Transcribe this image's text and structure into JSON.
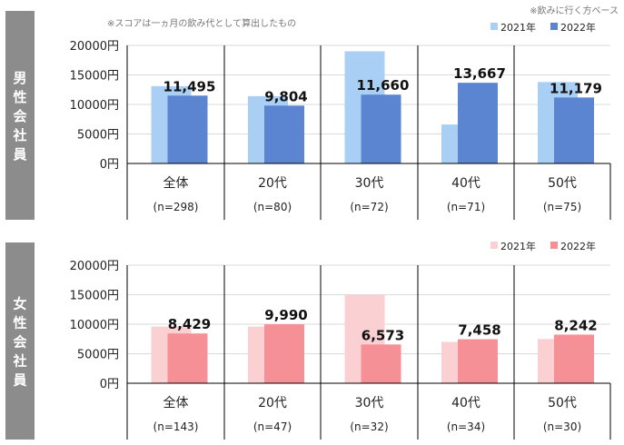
{
  "notes": {
    "score_note": "※スコアは一ヵ月の飲み代として算出したもの",
    "base_note": "※飲みに行く方ベース"
  },
  "colors": {
    "male_2021": "#a9cff5",
    "male_2022": "#5b84d1",
    "female_2021": "#fbd0d2",
    "female_2022": "#f59096",
    "side_label_bg": "#8c8c8c",
    "grid": "#d9d9d9",
    "axis": "#000000"
  },
  "chart_data": [
    {
      "type": "bar",
      "side_label": "男性会社員",
      "categories": [
        "全体",
        "20代",
        "30代",
        "40代",
        "50代"
      ],
      "sample_sizes": [
        "(n=298)",
        "(n=80)",
        "(n=72)",
        "(n=71)",
        "(n=75)"
      ],
      "series": [
        {
          "name": "2021年",
          "values": [
            13100,
            11400,
            19000,
            6600,
            13800
          ]
        },
        {
          "name": "2022年",
          "values": [
            11495,
            9804,
            11660,
            13667,
            11179
          ]
        }
      ],
      "data_labels": [
        "11,495",
        "9,804",
        "11,660",
        "13,667",
        "11,179"
      ],
      "y_ticks": [
        "0円",
        "5000円",
        "10000円",
        "15000円",
        "20000円"
      ],
      "ylim": [
        0,
        20000
      ],
      "grid": true,
      "legend_position": "top-right"
    },
    {
      "type": "bar",
      "side_label": "女性会社員",
      "categories": [
        "全体",
        "20代",
        "30代",
        "40代",
        "50代"
      ],
      "sample_sizes": [
        "(n=143)",
        "(n=47)",
        "(n=32)",
        "(n=34)",
        "(n=30)"
      ],
      "series": [
        {
          "name": "2021年",
          "values": [
            9600,
            9600,
            15000,
            7000,
            7500
          ]
        },
        {
          "name": "2022年",
          "values": [
            8429,
            9990,
            6573,
            7458,
            8242
          ]
        }
      ],
      "data_labels": [
        "8,429",
        "9,990",
        "6,573",
        "7,458",
        "8,242"
      ],
      "y_ticks": [
        "0円",
        "5000円",
        "10000円",
        "15000円",
        "20000円"
      ],
      "ylim": [
        0,
        20000
      ],
      "grid": true,
      "legend_position": "top-right"
    }
  ]
}
